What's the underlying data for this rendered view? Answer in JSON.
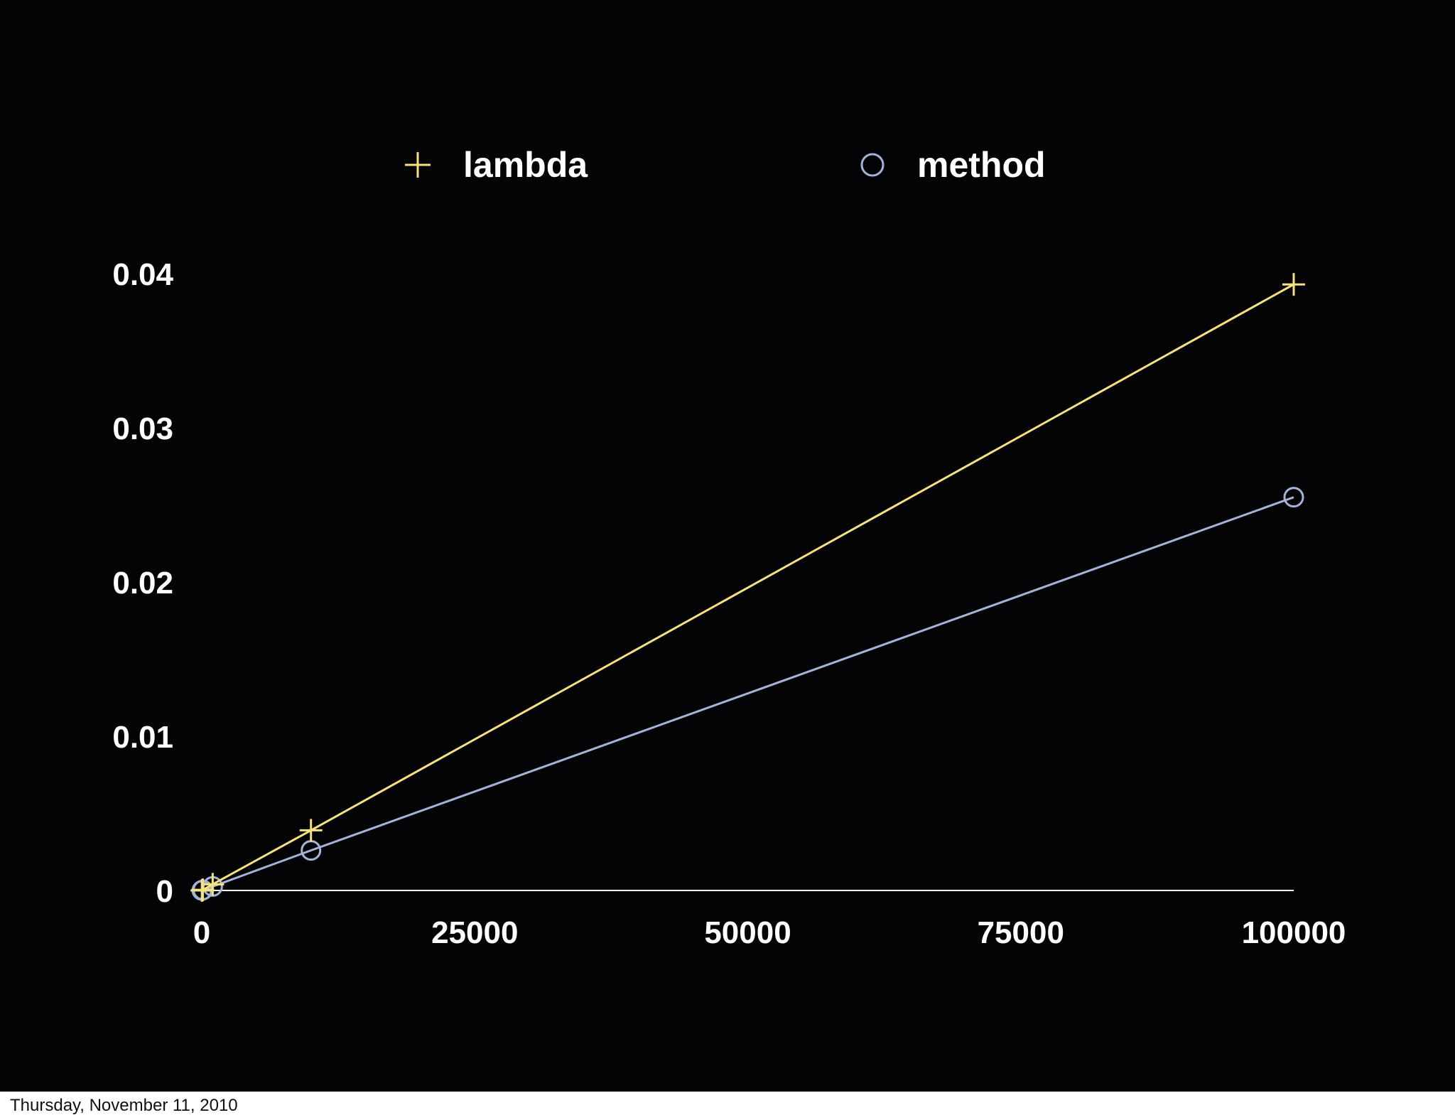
{
  "chart_data": {
    "type": "line",
    "title": "",
    "xlabel": "",
    "ylabel": "",
    "xlim": [
      0,
      100000
    ],
    "ylim": [
      0,
      0.04
    ],
    "x_ticks": [
      "0",
      "25000",
      "50000",
      "75000",
      "100000"
    ],
    "y_ticks": [
      "0",
      "0.01",
      "0.02",
      "0.03",
      "0.04"
    ],
    "x_tick_values": [
      0,
      25000,
      50000,
      75000,
      100000
    ],
    "y_tick_values": [
      0,
      0.01,
      0.02,
      0.03,
      0.04
    ],
    "grid": false,
    "legend": "top",
    "series": [
      {
        "name": "lambda",
        "marker": "plus",
        "color": "#f5e17f",
        "points": [
          {
            "x": 10,
            "y": 0.0
          },
          {
            "x": 100,
            "y": 4e-05
          },
          {
            "x": 1000,
            "y": 0.0004
          },
          {
            "x": 10000,
            "y": 0.0039
          },
          {
            "x": 100000,
            "y": 0.0393
          }
        ]
      },
      {
        "name": "method",
        "marker": "circle",
        "color": "#a3b4d6",
        "points": [
          {
            "x": 10,
            "y": 0.0
          },
          {
            "x": 100,
            "y": 3e-05
          },
          {
            "x": 1000,
            "y": 0.00026
          },
          {
            "x": 10000,
            "y": 0.0026
          },
          {
            "x": 100000,
            "y": 0.0255
          }
        ]
      }
    ]
  },
  "footer": {
    "date": "Thursday, November 11, 2010"
  }
}
